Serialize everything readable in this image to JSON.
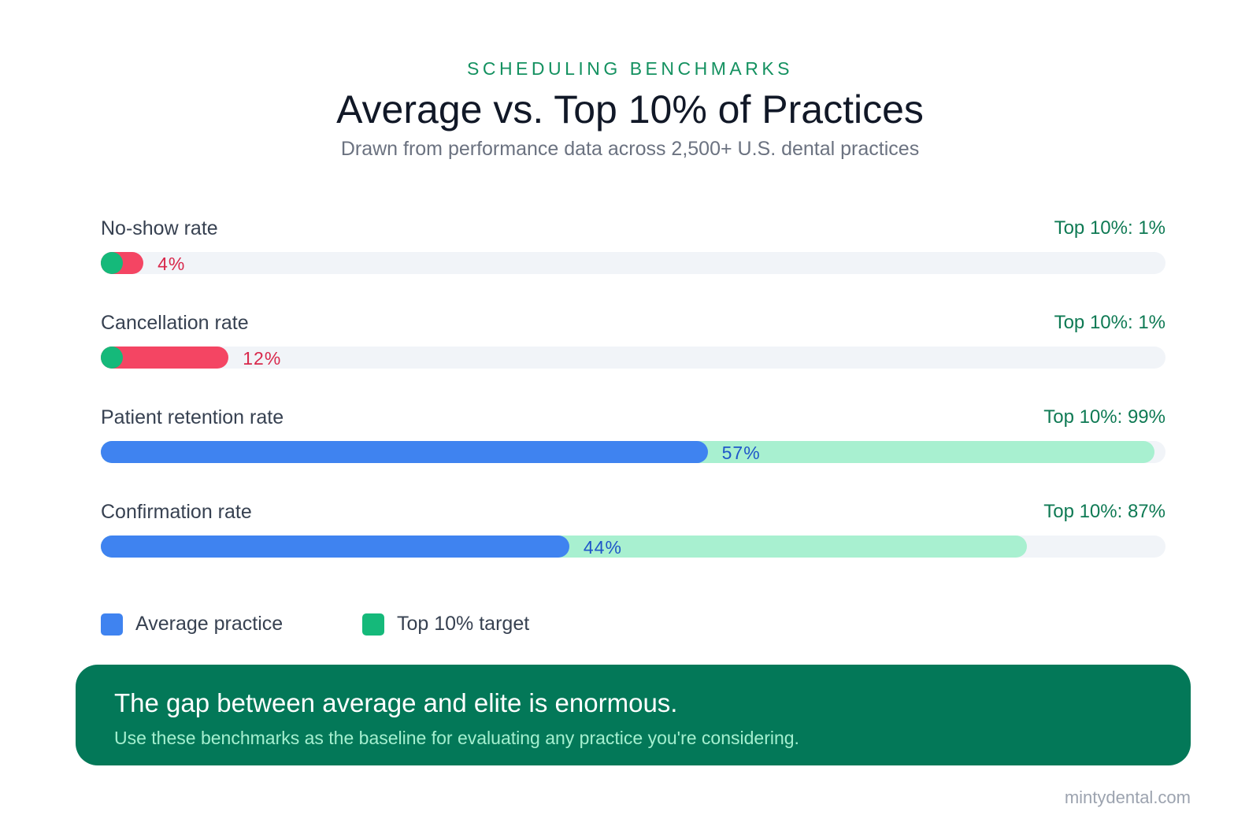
{
  "header": {
    "eyebrow": "SCHEDULING BENCHMARKS",
    "title": "Average vs. Top 10% of Practices",
    "subtitle": "Drawn from performance data across 2,500+ U.S. dental practices"
  },
  "chart_data": {
    "type": "bar",
    "orientation": "horizontal",
    "xlim": [
      0,
      100
    ],
    "categories": [
      "No-show rate",
      "Cancellation rate",
      "Patient retention rate",
      "Confirmation rate"
    ],
    "series": [
      {
        "name": "Average practice",
        "values": [
          4,
          12,
          57,
          44
        ]
      },
      {
        "name": "Top 10% target",
        "values": [
          1,
          1,
          99,
          87
        ]
      }
    ],
    "value_labels": [
      "4%",
      "12%",
      "57%",
      "44%"
    ],
    "top_labels": [
      "Top 10%: 1%",
      "Top 10%: 1%",
      "Top 10%: 99%",
      "Top 10%: 87%"
    ],
    "lower_is_better": [
      true,
      true,
      false,
      false
    ],
    "legend_position": "bottom-left",
    "grid": false
  },
  "colors": {
    "average": "#3f83f0",
    "top": "#15b97a",
    "average_negative": "#f44563",
    "top_positive_light": "#a8f0d0",
    "track": "#f1f4f8",
    "callout_bg": "#037858"
  },
  "legend": {
    "items": [
      "Average practice",
      "Top 10% target"
    ]
  },
  "callout": {
    "headline": "The gap between average and elite is enormous.",
    "subtext": "Use these benchmarks as the baseline for evaluating any practice you're considering."
  },
  "footer": {
    "site": "mintydental.com"
  }
}
